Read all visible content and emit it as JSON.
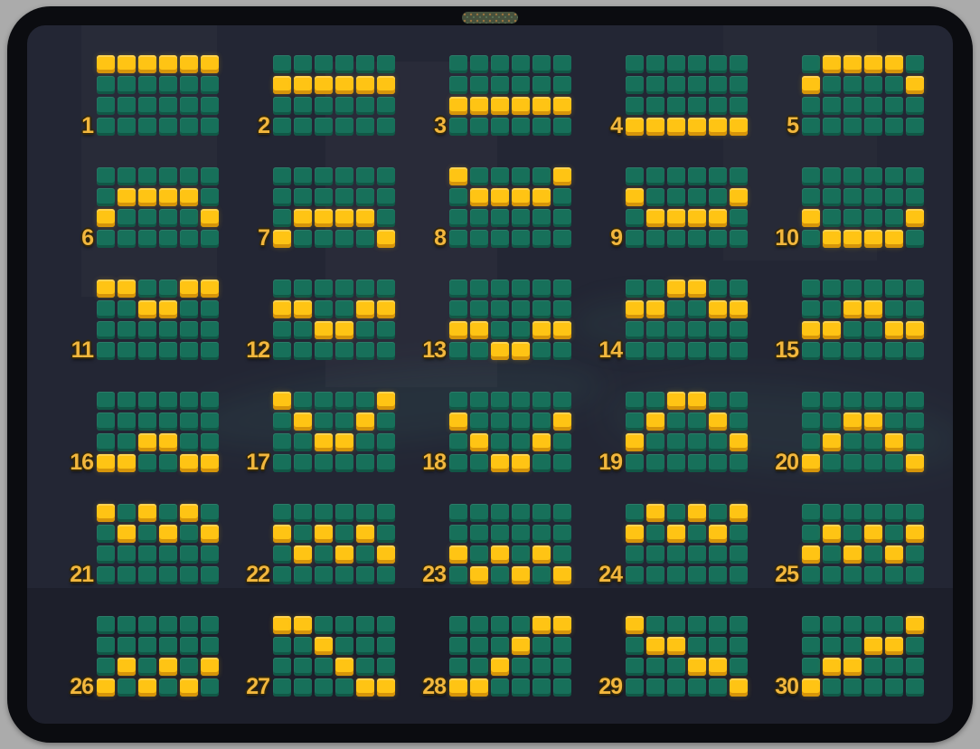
{
  "device": {
    "type": "tablet-frame",
    "speaker_grille": "speaker-grille"
  },
  "colors": {
    "outer_bg": "#ababab",
    "bezel": "#0b0c10",
    "screen_bg": "#232634",
    "cell_on": "#ffc414",
    "cell_off": "#17705a",
    "number_color": "#f2b73d"
  },
  "grid": {
    "columns": 6,
    "rows": 4
  },
  "paylines": [
    {
      "number": "1",
      "pattern": [
        0,
        0,
        0,
        0,
        0,
        0
      ]
    },
    {
      "number": "2",
      "pattern": [
        1,
        1,
        1,
        1,
        1,
        1
      ]
    },
    {
      "number": "3",
      "pattern": [
        2,
        2,
        2,
        2,
        2,
        2
      ]
    },
    {
      "number": "4",
      "pattern": [
        3,
        3,
        3,
        3,
        3,
        3
      ]
    },
    {
      "number": "5",
      "pattern": [
        1,
        0,
        0,
        0,
        0,
        1
      ]
    },
    {
      "number": "6",
      "pattern": [
        2,
        1,
        1,
        1,
        1,
        2
      ]
    },
    {
      "number": "7",
      "pattern": [
        3,
        2,
        2,
        2,
        2,
        3
      ]
    },
    {
      "number": "8",
      "pattern": [
        0,
        1,
        1,
        1,
        1,
        0
      ]
    },
    {
      "number": "9",
      "pattern": [
        1,
        2,
        2,
        2,
        2,
        1
      ]
    },
    {
      "number": "10",
      "pattern": [
        2,
        3,
        3,
        3,
        3,
        2
      ]
    },
    {
      "number": "11",
      "pattern": [
        0,
        0,
        1,
        1,
        0,
        0
      ]
    },
    {
      "number": "12",
      "pattern": [
        1,
        1,
        2,
        2,
        1,
        1
      ]
    },
    {
      "number": "13",
      "pattern": [
        2,
        2,
        3,
        3,
        2,
        2
      ]
    },
    {
      "number": "14",
      "pattern": [
        1,
        1,
        0,
        0,
        1,
        1
      ]
    },
    {
      "number": "15",
      "pattern": [
        2,
        2,
        1,
        1,
        2,
        2
      ]
    },
    {
      "number": "16",
      "pattern": [
        3,
        3,
        2,
        2,
        3,
        3
      ]
    },
    {
      "number": "17",
      "pattern": [
        0,
        1,
        2,
        2,
        1,
        0
      ]
    },
    {
      "number": "18",
      "pattern": [
        1,
        2,
        3,
        3,
        2,
        1
      ]
    },
    {
      "number": "19",
      "pattern": [
        2,
        1,
        0,
        0,
        1,
        2
      ]
    },
    {
      "number": "20",
      "pattern": [
        3,
        2,
        1,
        1,
        2,
        3
      ]
    },
    {
      "number": "21",
      "pattern": [
        0,
        1,
        0,
        1,
        0,
        1
      ]
    },
    {
      "number": "22",
      "pattern": [
        1,
        2,
        1,
        2,
        1,
        2
      ]
    },
    {
      "number": "23",
      "pattern": [
        2,
        3,
        2,
        3,
        2,
        3
      ]
    },
    {
      "number": "24",
      "pattern": [
        1,
        0,
        1,
        0,
        1,
        0
      ]
    },
    {
      "number": "25",
      "pattern": [
        2,
        1,
        2,
        1,
        2,
        1
      ]
    },
    {
      "number": "26",
      "pattern": [
        3,
        2,
        3,
        2,
        3,
        2
      ]
    },
    {
      "number": "27",
      "pattern": [
        0,
        0,
        1,
        2,
        3,
        3
      ]
    },
    {
      "number": "28",
      "pattern": [
        3,
        3,
        2,
        1,
        0,
        0
      ]
    },
    {
      "number": "29",
      "pattern": [
        0,
        1,
        1,
        2,
        2,
        3
      ]
    },
    {
      "number": "30",
      "pattern": [
        3,
        2,
        2,
        1,
        1,
        0
      ]
    }
  ]
}
